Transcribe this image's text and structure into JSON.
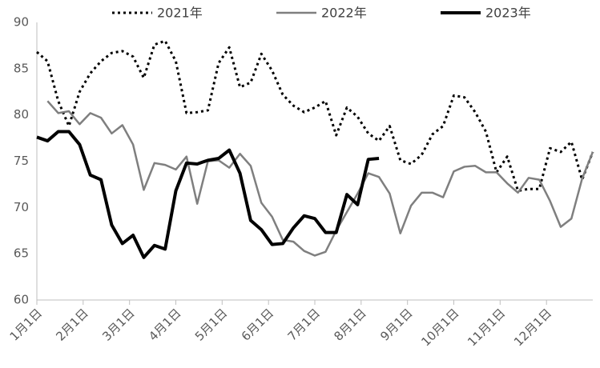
{
  "chart_data": {
    "type": "line",
    "x": [
      0,
      1,
      2,
      3,
      4,
      5,
      6,
      7,
      8,
      9,
      10,
      11,
      12,
      13,
      14,
      15,
      16,
      17,
      18,
      19,
      20,
      21,
      22,
      23,
      24,
      25,
      26,
      27,
      28,
      29,
      30,
      31,
      32,
      33,
      34,
      35,
      36,
      37,
      38,
      39,
      40,
      41,
      42,
      43,
      44,
      45,
      46,
      47,
      48,
      49,
      50,
      51,
      52
    ],
    "xlim": [
      0,
      52
    ],
    "xticks": [
      {
        "value": 0,
        "label": "1月1日"
      },
      {
        "value": 4.33,
        "label": "2月1日"
      },
      {
        "value": 8.67,
        "label": "3月1日"
      },
      {
        "value": 13,
        "label": "4月1日"
      },
      {
        "value": 17.33,
        "label": "5月1日"
      },
      {
        "value": 21.67,
        "label": "6月1日"
      },
      {
        "value": 26,
        "label": "7月1日"
      },
      {
        "value": 30.33,
        "label": "8月1日"
      },
      {
        "value": 34.67,
        "label": "9月1日"
      },
      {
        "value": 39,
        "label": "10月1日"
      },
      {
        "value": 43.33,
        "label": "11月1日"
      },
      {
        "value": 47.67,
        "label": "12月1日"
      }
    ],
    "ylim": [
      60,
      90
    ],
    "yticks": [
      60,
      65,
      70,
      75,
      80,
      85,
      90
    ],
    "grid": false,
    "legend": "top",
    "series": [
      {
        "name": "2021年",
        "color": "#000000",
        "line_style": "dotted",
        "line_width": 3,
        "values": [
          86.8,
          85.8,
          81.5,
          78.8,
          82.5,
          84.5,
          85.8,
          86.7,
          86.9,
          86.3,
          84.0,
          87.6,
          88.0,
          85.8,
          80.2,
          80.3,
          80.5,
          85.6,
          87.3,
          83.0,
          83.5,
          86.6,
          84.8,
          82.2,
          81.0,
          80.3,
          80.8,
          81.5,
          77.8,
          80.8,
          79.8,
          78.0,
          77.2,
          78.8,
          75.1,
          74.7,
          75.7,
          77.9,
          78.8,
          82.1,
          81.9,
          80.3,
          78.2,
          73.8,
          75.5,
          71.8,
          72.0,
          72.0,
          76.4,
          76.0,
          77.1,
          73.0,
          76.0
        ]
      },
      {
        "name": "2022年",
        "color": "#7f7f7f",
        "line_style": "solid",
        "line_width": 2.5,
        "values": [
          null,
          81.5,
          80.2,
          80.4,
          79.0,
          80.2,
          79.7,
          78.0,
          78.9,
          76.8,
          71.9,
          74.8,
          74.6,
          74.1,
          75.5,
          70.4,
          75.0,
          75.1,
          74.3,
          75.8,
          74.5,
          70.5,
          69.0,
          66.5,
          66.3,
          65.3,
          64.8,
          65.2,
          67.5,
          69.5,
          71.5,
          73.7,
          73.3,
          71.5,
          67.2,
          70.2,
          71.6,
          71.6,
          71.1,
          73.9,
          74.4,
          74.5,
          73.8,
          73.8,
          72.6,
          71.6,
          73.2,
          73.0,
          70.7,
          67.9,
          68.8,
          73.1,
          76.0
        ]
      },
      {
        "name": "2023年",
        "color": "#000000",
        "line_style": "solid",
        "line_width": 4,
        "values": [
          77.6,
          77.2,
          78.2,
          78.2,
          76.8,
          73.5,
          73.0,
          68.1,
          66.1,
          67.0,
          64.6,
          65.9,
          65.5,
          71.8,
          74.8,
          74.7,
          75.1,
          75.3,
          76.2,
          73.7,
          68.6,
          67.6,
          66.0,
          66.1,
          67.8,
          69.1,
          68.8,
          67.3,
          67.3,
          71.4,
          70.3,
          75.2,
          75.3,
          null,
          null,
          null,
          null,
          null,
          null,
          null,
          null,
          null,
          null,
          null,
          null,
          null,
          null,
          null,
          null,
          null,
          null,
          null,
          null
        ]
      }
    ]
  }
}
